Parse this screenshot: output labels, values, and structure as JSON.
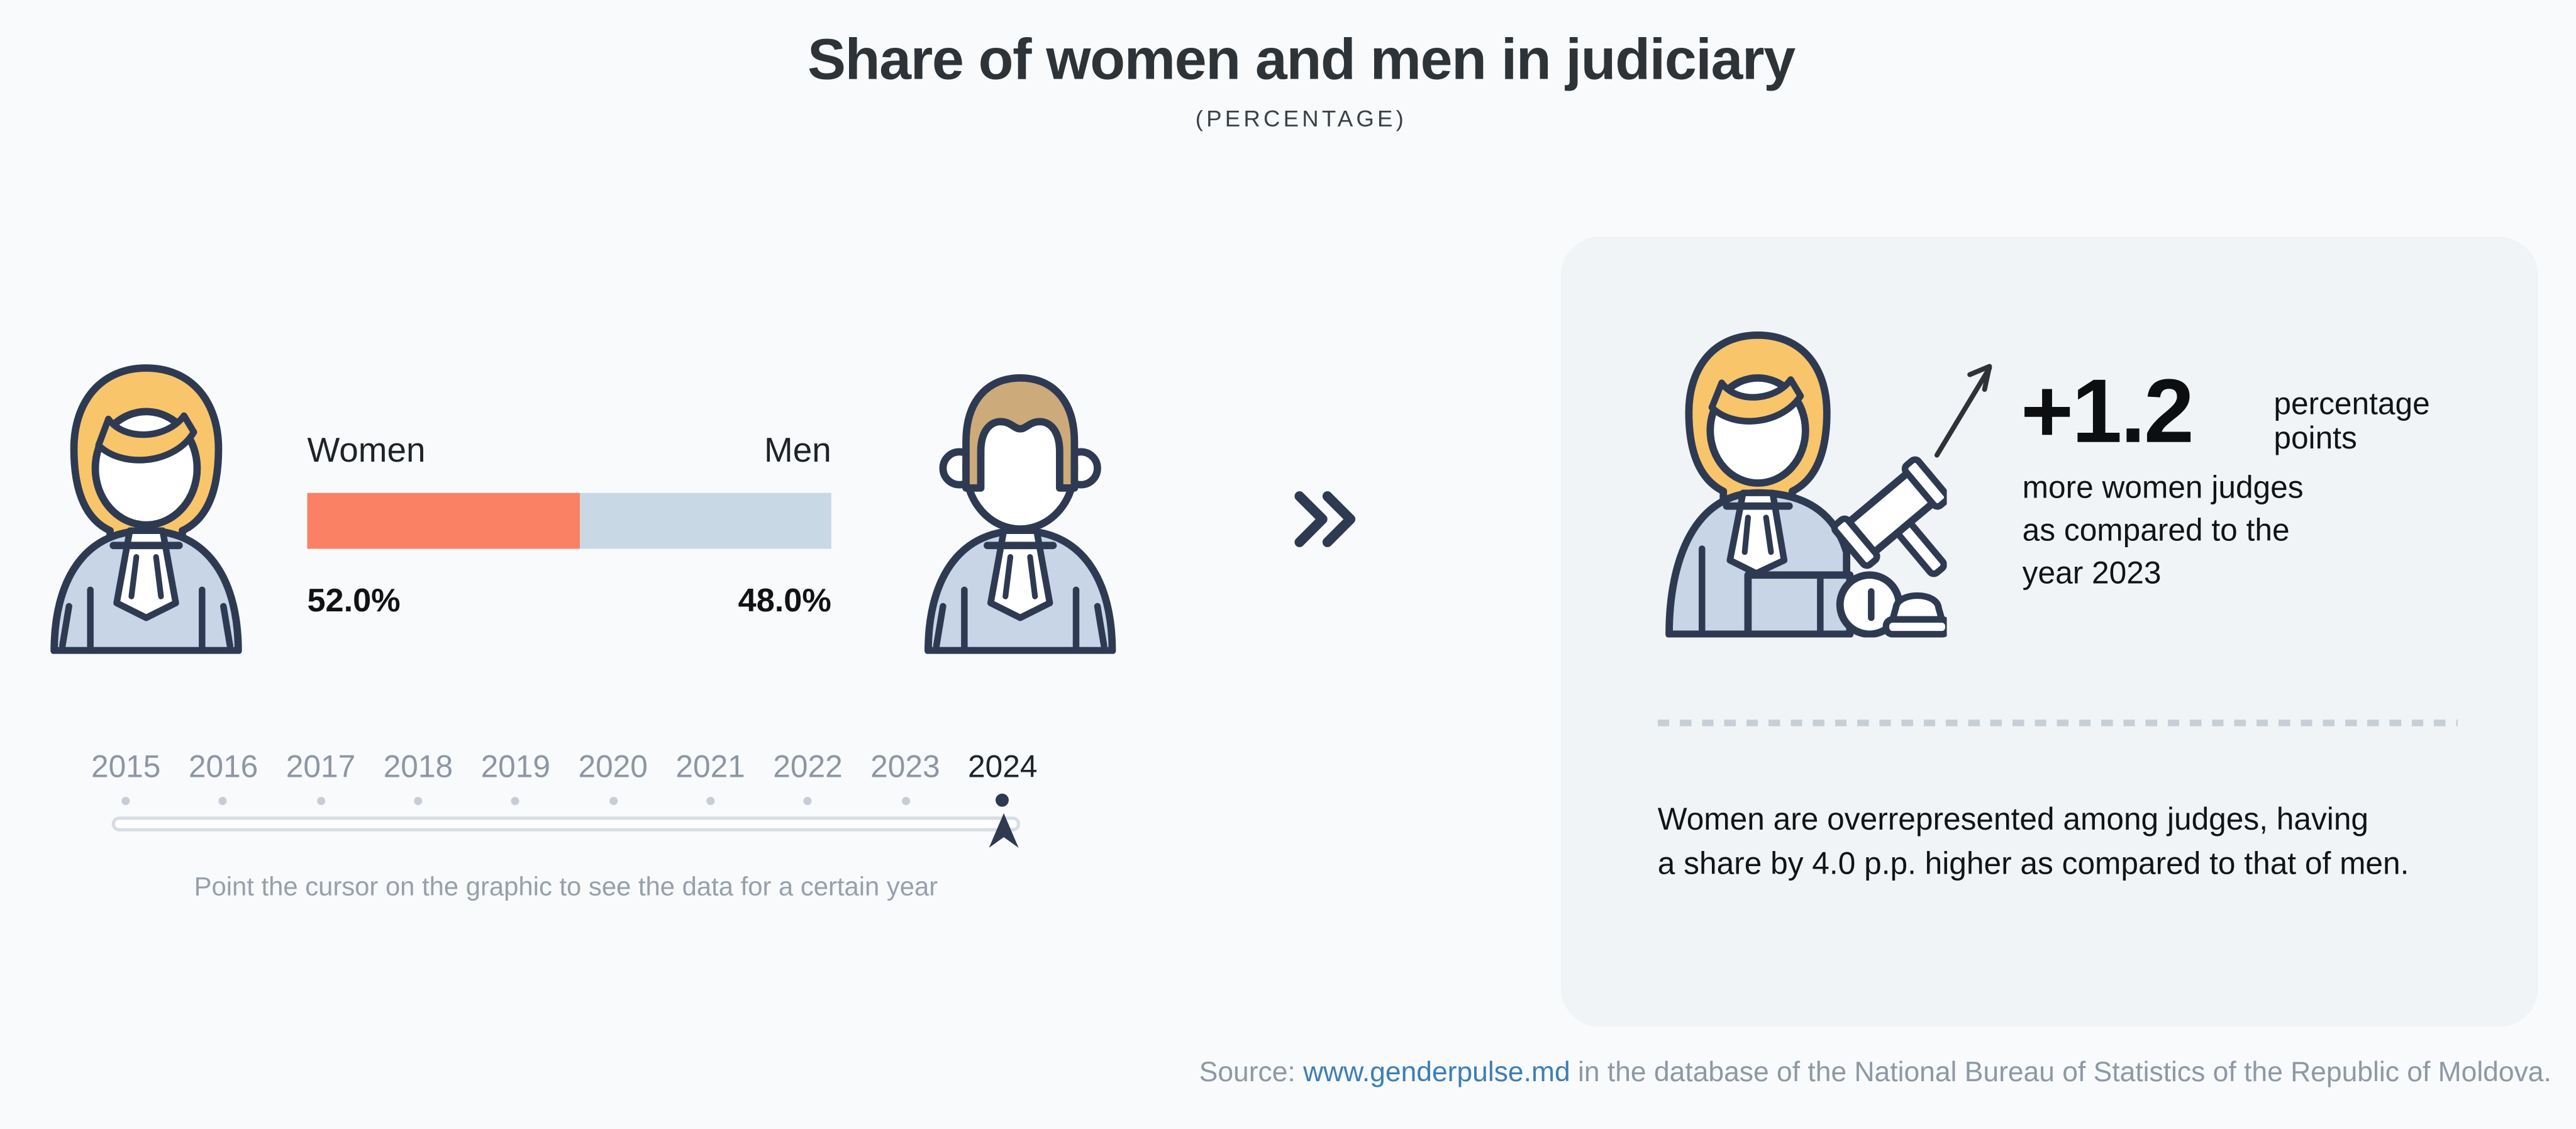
{
  "title": "Share of women and men in judiciary",
  "subtitle": "(PERCENTAGE)",
  "share_bar": {
    "women_label": "Women",
    "men_label": "Men",
    "women_value_label": "52.0%",
    "men_value_label": "48.0%"
  },
  "chart_data": {
    "type": "bar",
    "title": "Share of women and men in judiciary",
    "subtitle": "(PERCENTAGE)",
    "categories": [
      "Women",
      "Men"
    ],
    "values": [
      52.0,
      48.0
    ],
    "unit": "percent",
    "xlim": [
      0,
      100
    ],
    "years": [
      "2015",
      "2016",
      "2017",
      "2018",
      "2019",
      "2020",
      "2021",
      "2022",
      "2023",
      "2024"
    ],
    "selected_year": "2024",
    "change_vs_previous_year_pp": 1.2,
    "gap_women_minus_men_pp": 4.0,
    "colors": {
      "women": "#FA8164",
      "men": "#C9D8E5"
    },
    "legend_position": "above-bar"
  },
  "timeline": {
    "hint": "Point the cursor on the graphic to see the data for a certain year"
  },
  "insight_panel": {
    "delta_value": "+1.2",
    "delta_unit": "percentage\npoints",
    "delta_description": "more women judges\nas compared to the\nyear 2023",
    "summary": "Women are overrepresented among judges, having\na share by 4.0 p.p. higher as compared to that of men."
  },
  "source": {
    "prefix": "Source: ",
    "link_text": "www.genderpulse.md",
    "suffix": " in the database of the National Bureau of Statistics of the Republic of Moldova."
  },
  "icons": {
    "woman_judge": "woman-judge-illustration",
    "man_judge": "man-judge-illustration",
    "woman_judge_gavel": "woman-judge-with-gavel-illustration",
    "double_chevron": "double-chevron-right",
    "trend_arrow": "arrow-up-right",
    "timeline_cursor": "slider-cursor-arrow"
  },
  "theme": {
    "background": "#F8FAFB",
    "panel_background": "#F1F4F6",
    "outline_navy": "#2E3A52",
    "hair_blonde": "#F8C56A",
    "hair_brown": "#CDAA7A",
    "robe_blue": "#C7D5E7",
    "link_blue": "#3D7EB5",
    "muted_gray": "#97A0AB"
  }
}
